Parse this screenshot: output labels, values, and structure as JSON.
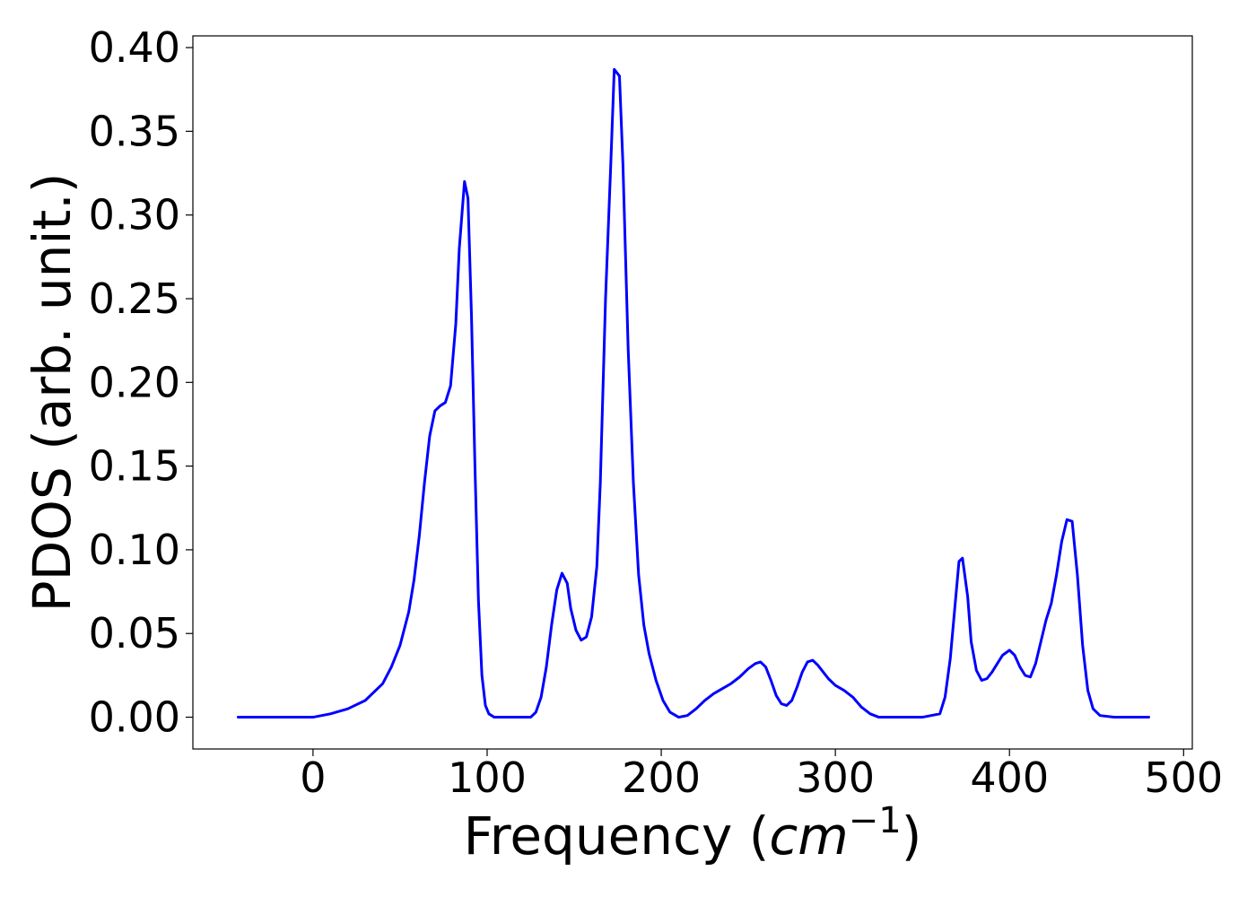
{
  "chart_data": {
    "type": "line",
    "title": "",
    "xlabel": "Frequency (",
    "xlabel_math": "cm",
    "xlabel_sup": "−1",
    "xlabel_close": ")",
    "ylabel": "PDOS (arb. unit.)",
    "xlim": [
      -69,
      505
    ],
    "ylim": [
      -0.019,
      0.407
    ],
    "grid": false,
    "legend": "none",
    "xticks": [
      0,
      100,
      200,
      300,
      400,
      500
    ],
    "xtick_labels": [
      "0",
      "100",
      "200",
      "300",
      "400",
      "500"
    ],
    "yticks": [
      0.0,
      0.05,
      0.1,
      0.15,
      0.2,
      0.25,
      0.3,
      0.35,
      0.4
    ],
    "ytick_labels": [
      "0.00",
      "0.05",
      "0.10",
      "0.15",
      "0.20",
      "0.25",
      "0.30",
      "0.35",
      "0.40"
    ],
    "series": [
      {
        "color": "#0000ff",
        "x": [
          -43,
          -20,
          0,
          10,
          20,
          30,
          40,
          45,
          50,
          55,
          58,
          61,
          64,
          67,
          70,
          73,
          76,
          79,
          82,
          84,
          87,
          89,
          91,
          93,
          95,
          97,
          99,
          101,
          104,
          107,
          110,
          115,
          125,
          128,
          131,
          134,
          137,
          140,
          143,
          146,
          148,
          151,
          154,
          157,
          160,
          163,
          165,
          168,
          171,
          173,
          176,
          178,
          181,
          184,
          187,
          190,
          193,
          197,
          201,
          205,
          210,
          215,
          220,
          225,
          230,
          235,
          240,
          245,
          250,
          254,
          257,
          260,
          263,
          266,
          269,
          272,
          275,
          278,
          281,
          284,
          287,
          290,
          293,
          296,
          300,
          305,
          310,
          315,
          320,
          325,
          330,
          340,
          350,
          360,
          363,
          366,
          369,
          371,
          373,
          376,
          378,
          381,
          384,
          387,
          390,
          393,
          396,
          400,
          403,
          406,
          409,
          412,
          415,
          418,
          421,
          424,
          427,
          430,
          433,
          436,
          439,
          442,
          445,
          448,
          452,
          460,
          480
        ],
        "y": [
          0.0,
          0.0,
          0.0,
          0.002,
          0.005,
          0.01,
          0.02,
          0.03,
          0.043,
          0.063,
          0.082,
          0.108,
          0.14,
          0.168,
          0.183,
          0.186,
          0.188,
          0.198,
          0.235,
          0.28,
          0.32,
          0.31,
          0.24,
          0.15,
          0.07,
          0.025,
          0.007,
          0.002,
          0.0,
          0.0,
          0.0,
          0.0,
          0.0,
          0.003,
          0.012,
          0.03,
          0.055,
          0.076,
          0.086,
          0.08,
          0.065,
          0.052,
          0.046,
          0.048,
          0.06,
          0.09,
          0.14,
          0.25,
          0.33,
          0.387,
          0.383,
          0.33,
          0.22,
          0.14,
          0.085,
          0.055,
          0.038,
          0.022,
          0.01,
          0.003,
          0.0,
          0.001,
          0.005,
          0.01,
          0.014,
          0.017,
          0.02,
          0.024,
          0.029,
          0.032,
          0.033,
          0.03,
          0.022,
          0.013,
          0.008,
          0.007,
          0.01,
          0.018,
          0.027,
          0.033,
          0.034,
          0.031,
          0.027,
          0.023,
          0.019,
          0.016,
          0.012,
          0.006,
          0.002,
          0.0,
          0.0,
          0.0,
          0.0,
          0.002,
          0.012,
          0.035,
          0.07,
          0.093,
          0.095,
          0.072,
          0.045,
          0.028,
          0.022,
          0.023,
          0.027,
          0.032,
          0.037,
          0.04,
          0.037,
          0.03,
          0.025,
          0.024,
          0.032,
          0.045,
          0.058,
          0.068,
          0.085,
          0.105,
          0.118,
          0.117,
          0.085,
          0.043,
          0.016,
          0.005,
          0.001,
          0.0,
          0.0
        ]
      }
    ]
  }
}
